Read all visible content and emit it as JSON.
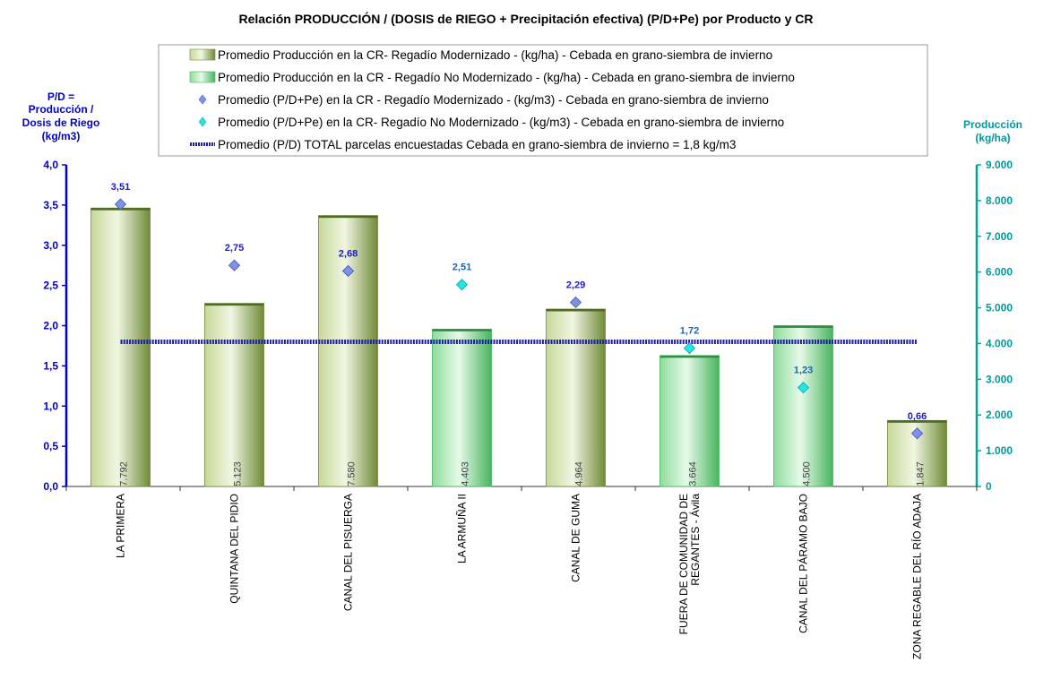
{
  "chart_data": {
    "type": "bar",
    "title": "Relación PRODUCCIÓN / (DOSIS de RIEGO + Precipitación efectiva)  (P/D+Pe) por Producto y CR",
    "left_axis": {
      "label_lines": [
        "P/D =",
        "Producción  /",
        "Dosis  de Riego",
        "(kg/m3)"
      ],
      "ylim": [
        0,
        4.0
      ],
      "ticks": [
        "0,0",
        "0,5",
        "1,0",
        "1,5",
        "2,0",
        "2,5",
        "3,0",
        "3,5",
        "4,0"
      ]
    },
    "right_axis": {
      "label_lines": [
        "Producción",
        "(kg/ha)"
      ],
      "ylim": [
        0,
        9000
      ],
      "ticks": [
        "0",
        "1.000",
        "2.000",
        "3.000",
        "4.000",
        "5.000",
        "6.000",
        "7.000",
        "8.000",
        "9.000"
      ]
    },
    "categories": [
      [
        "LA PRIMERA"
      ],
      [
        "QUINTANA DEL PIDIO"
      ],
      [
        "CANAL DEL PISUERGA"
      ],
      [
        "LA ARMUÑA II"
      ],
      [
        "CANAL DE GUMA"
      ],
      [
        "FUERA DE COMUNIDAD DE",
        "REGANTES - Ávila"
      ],
      [
        "CANAL DEL PÁRAMO BAJO"
      ],
      [
        "ZONA REGABLE DEL RÍO ADAJA"
      ]
    ],
    "irrigation_type": [
      "mod",
      "mod",
      "mod",
      "nomod",
      "mod",
      "nomod",
      "nomod",
      "mod"
    ],
    "production_values": [
      7792,
      5123,
      7580,
      4403,
      4964,
      3664,
      4500,
      1847
    ],
    "production_labels": [
      "7.792",
      "5.123",
      "7.580",
      "4.403",
      "4.964",
      "3.664",
      "4.500",
      "1.847"
    ],
    "pd_values": [
      3.51,
      2.75,
      2.68,
      2.51,
      2.29,
      1.72,
      1.23,
      0.66
    ],
    "pd_labels": [
      "3,51",
      "2,75",
      "2,68",
      "2,51",
      "2,29",
      "1,72",
      "1,23",
      "0,66"
    ],
    "total_pd": 1.8,
    "legend": [
      "Promedio Producción en la CR- Regadío Modernizado -  (kg/ha) - Cebada en grano-siembra de invierno",
      "Promedio Producción en la CR - Regadío No Modernizado -  (kg/ha) - Cebada en grano-siembra de invierno",
      "Promedio (P/D+Pe) en la CR - Regadío Modernizado - (kg/m3) - Cebada en grano-siembra de invierno",
      "Promedio (P/D+Pe) en la CR- Regadío No Modernizado - (kg/m3) - Cebada en grano-siembra de invierno",
      "Promedio (P/D) TOTAL parcelas encuestadas Cebada en grano-siembra de invierno = 1,8 kg/m3"
    ],
    "colors": {
      "bar_mod_light": "#d6e3b4",
      "bar_mod_dark": "#6f8a37",
      "bar_nomod_light": "#d2f2d6",
      "bar_nomod_dark": "#48b45e",
      "marker_mod": "#7f93e6",
      "marker_nomod": "#20e6e6",
      "total_line": "#1d1db8",
      "left_axis": "#0000cc",
      "right_axis": "#00a693"
    }
  }
}
